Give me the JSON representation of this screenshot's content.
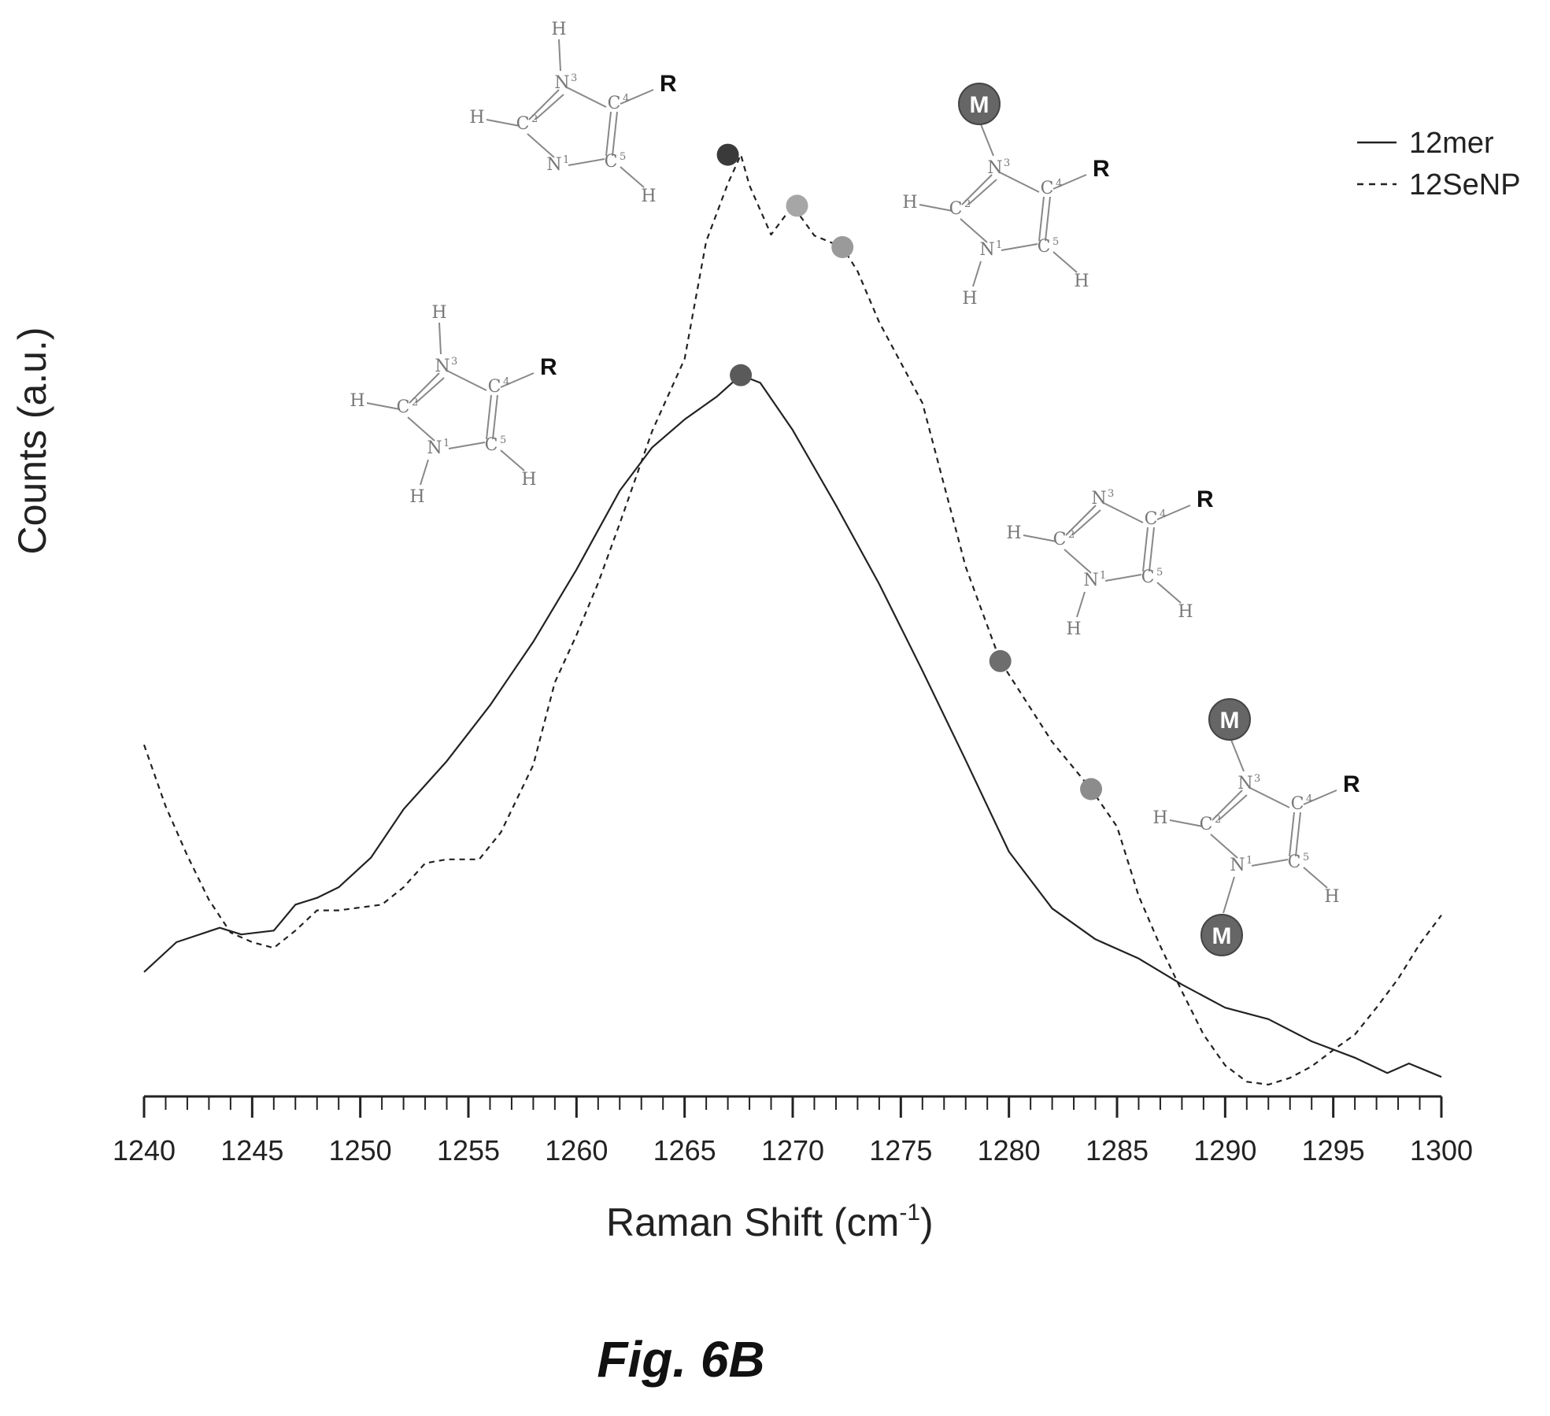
{
  "chart_data": {
    "type": "line",
    "caption": "Fig. 6B",
    "xlabel": "Raman Shift (cm",
    "xlabel_sup": "-1",
    "xlabel_close": ")",
    "ylabel": "Counts (a.u.)",
    "xlim": [
      1240,
      1300
    ],
    "ylim": [
      0,
      1
    ],
    "x_ticks": [
      1240,
      1245,
      1250,
      1255,
      1260,
      1265,
      1270,
      1275,
      1280,
      1285,
      1290,
      1295,
      1300
    ],
    "x_tick_labels": [
      "1240",
      "1245",
      "1250",
      "1255",
      "1260",
      "1265",
      "1270",
      "1275",
      "1280",
      "1285",
      "1290",
      "1295",
      "1300"
    ],
    "y_ticks_shown": false,
    "grid": false,
    "legend_position": "top-right",
    "series": [
      {
        "name": "12mer",
        "style": "solid",
        "color": "#222222",
        "x": [
          1240,
          1241.5,
          1243.5,
          1244.5,
          1246,
          1247,
          1248,
          1249,
          1250.5,
          1252,
          1254,
          1256,
          1258,
          1260,
          1262,
          1263.5,
          1265,
          1266.5,
          1267.6,
          1268.5,
          1270,
          1272,
          1274,
          1276,
          1278,
          1280,
          1282,
          1284,
          1286,
          1288,
          1290,
          1292,
          1294,
          1296,
          1297.5,
          1298.5,
          1300
        ],
        "y": [
          0.117,
          0.148,
          0.163,
          0.156,
          0.16,
          0.187,
          0.194,
          0.205,
          0.236,
          0.286,
          0.336,
          0.394,
          0.46,
          0.535,
          0.617,
          0.662,
          0.691,
          0.715,
          0.737,
          0.729,
          0.68,
          0.602,
          0.52,
          0.43,
          0.337,
          0.242,
          0.183,
          0.151,
          0.131,
          0.104,
          0.08,
          0.068,
          0.045,
          0.028,
          0.012,
          0.022,
          0.008
        ]
      },
      {
        "name": "12SeNP",
        "style": "dashed",
        "color": "#222222",
        "x": [
          1240,
          1241,
          1242,
          1243,
          1244,
          1245,
          1246,
          1247,
          1248,
          1249,
          1251,
          1252,
          1253,
          1254,
          1255.5,
          1256.5,
          1258,
          1259,
          1260,
          1261,
          1262,
          1263.5,
          1265,
          1266,
          1267,
          1267.6,
          1268,
          1269,
          1270,
          1271,
          1272.3,
          1273,
          1274,
          1276,
          1278,
          1279.6,
          1281,
          1282,
          1283.8,
          1285,
          1286,
          1287,
          1288,
          1289,
          1290,
          1291,
          1292,
          1293,
          1294,
          1295,
          1296,
          1297,
          1298,
          1299,
          1300
        ],
        "y": [
          0.353,
          0.289,
          0.238,
          0.192,
          0.158,
          0.148,
          0.142,
          0.16,
          0.181,
          0.181,
          0.187,
          0.205,
          0.23,
          0.234,
          0.234,
          0.262,
          0.332,
          0.418,
          0.467,
          0.521,
          0.583,
          0.679,
          0.754,
          0.876,
          0.936,
          0.966,
          0.934,
          0.883,
          0.913,
          0.882,
          0.87,
          0.845,
          0.792,
          0.708,
          0.538,
          0.44,
          0.391,
          0.356,
          0.307,
          0.268,
          0.196,
          0.144,
          0.097,
          0.052,
          0.02,
          0.003,
          0.0,
          0.007,
          0.019,
          0.036,
          0.052,
          0.08,
          0.11,
          0.146,
          0.176
        ]
      }
    ],
    "markers": [
      {
        "x": 1267.6,
        "y": 0.737,
        "color": "#5a5a5a"
      },
      {
        "x": 1267.0,
        "y": 0.966,
        "color": "#3a3a3a"
      },
      {
        "x": 1270.2,
        "y": 0.913,
        "color": "#a6a6a6"
      },
      {
        "x": 1272.3,
        "y": 0.87,
        "color": "#9a9a9a"
      },
      {
        "x": 1279.6,
        "y": 0.44,
        "color": "#6e6e6e"
      },
      {
        "x": 1283.8,
        "y": 0.307,
        "color": "#8c8c8c"
      }
    ]
  },
  "structures": {
    "r_label": "R",
    "metal_label": "M",
    "atoms": {
      "h": "H",
      "n": "N",
      "c": "C",
      "sup_n1": "1",
      "sup_c2": "2",
      "sup_n3": "3",
      "sup_c4": "4",
      "sup_c5": "5"
    }
  }
}
